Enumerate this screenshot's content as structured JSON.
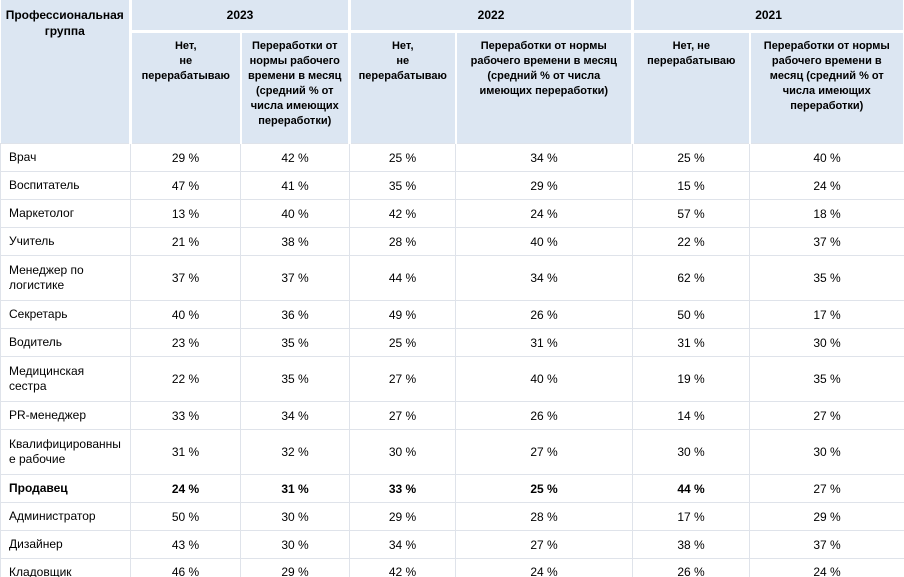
{
  "chart_data": {
    "type": "table",
    "corner_header": "Профессиональная\nгруппа",
    "year_groups": [
      {
        "year": "2023",
        "no_overtime_header": "Нет,\nне\nперерабатываю",
        "overtime_header": "Переработки от\nнормы рабочего\nвремени в месяц\n(средний % от\nчисла имеющих\nпереработки)"
      },
      {
        "year": "2022",
        "no_overtime_header": "Нет,\nне\nперерабатываю",
        "overtime_header": "Переработки от нормы\nрабочего времени в месяц\n(средний % от числа\nимеющих переработки)"
      },
      {
        "year": "2021",
        "no_overtime_header": "Нет, не\nперерабатываю",
        "overtime_header": "Переработки от нормы\nрабочего времени в\nмесяц (средний % от\nчисла имеющих\nпереработки)"
      }
    ],
    "rows": [
      {
        "label": "Врач",
        "values": [
          "29 %",
          "42 %",
          "25 %",
          "34 %",
          "25 %",
          "40 %"
        ]
      },
      {
        "label": "Воспитатель",
        "values": [
          "47 %",
          "41 %",
          "35 %",
          "29 %",
          "15 %",
          "24 %"
        ]
      },
      {
        "label": "Маркетолог",
        "values": [
          "13 %",
          "40 %",
          "42 %",
          "24 %",
          "57 %",
          "18 %"
        ]
      },
      {
        "label": "Учитель",
        "values": [
          "21 %",
          "38 %",
          "28 %",
          "40 %",
          "22 %",
          "37 %"
        ]
      },
      {
        "label": "Менеджер по\nлогистике",
        "values": [
          "37 %",
          "37 %",
          "44 %",
          "34 %",
          "62 %",
          "35 %"
        ],
        "tall": true
      },
      {
        "label": "Секретарь",
        "values": [
          "40 %",
          "36 %",
          "49 %",
          "26 %",
          "50 %",
          "17 %"
        ]
      },
      {
        "label": "Водитель",
        "values": [
          "23 %",
          "35 %",
          "25 %",
          "31 %",
          "31 %",
          "30 %"
        ]
      },
      {
        "label": "Медицинская\nсестра",
        "values": [
          "22 %",
          "35 %",
          "27 %",
          "40 %",
          "19 %",
          "35 %"
        ],
        "tall": true
      },
      {
        "label": "PR-менеджер",
        "values": [
          "33 %",
          "34 %",
          "27 %",
          "26 %",
          "14 %",
          "27 %"
        ]
      },
      {
        "label": "Квалифицированны\nе рабочие",
        "values": [
          "31 %",
          "32 %",
          "30 %",
          "27 %",
          "30 %",
          "30 %"
        ],
        "tall": true
      },
      {
        "label": "Продавец",
        "values": [
          "24 %",
          "31 %",
          "33 %",
          "25 %",
          "44 %",
          "27 %"
        ],
        "bold": true,
        "bold_mask": [
          1,
          1,
          1,
          1,
          1,
          0
        ]
      },
      {
        "label": "Администратор",
        "values": [
          "50 %",
          "30 %",
          "29 %",
          "28 %",
          "17 %",
          "29 %"
        ]
      },
      {
        "label": "Дизайнер",
        "values": [
          "43 %",
          "30 %",
          "34 %",
          "27 %",
          "38 %",
          "37 %"
        ]
      },
      {
        "label": "Кладовщик",
        "values": [
          "46 %",
          "29 %",
          "42 %",
          "24 %",
          "26 %",
          "24 %"
        ]
      }
    ],
    "colors": {
      "header_bg": "#dce6f2",
      "grid_line": "#dfe3ea",
      "bottom_rule": "#95b3d7",
      "text": "#000000"
    }
  }
}
